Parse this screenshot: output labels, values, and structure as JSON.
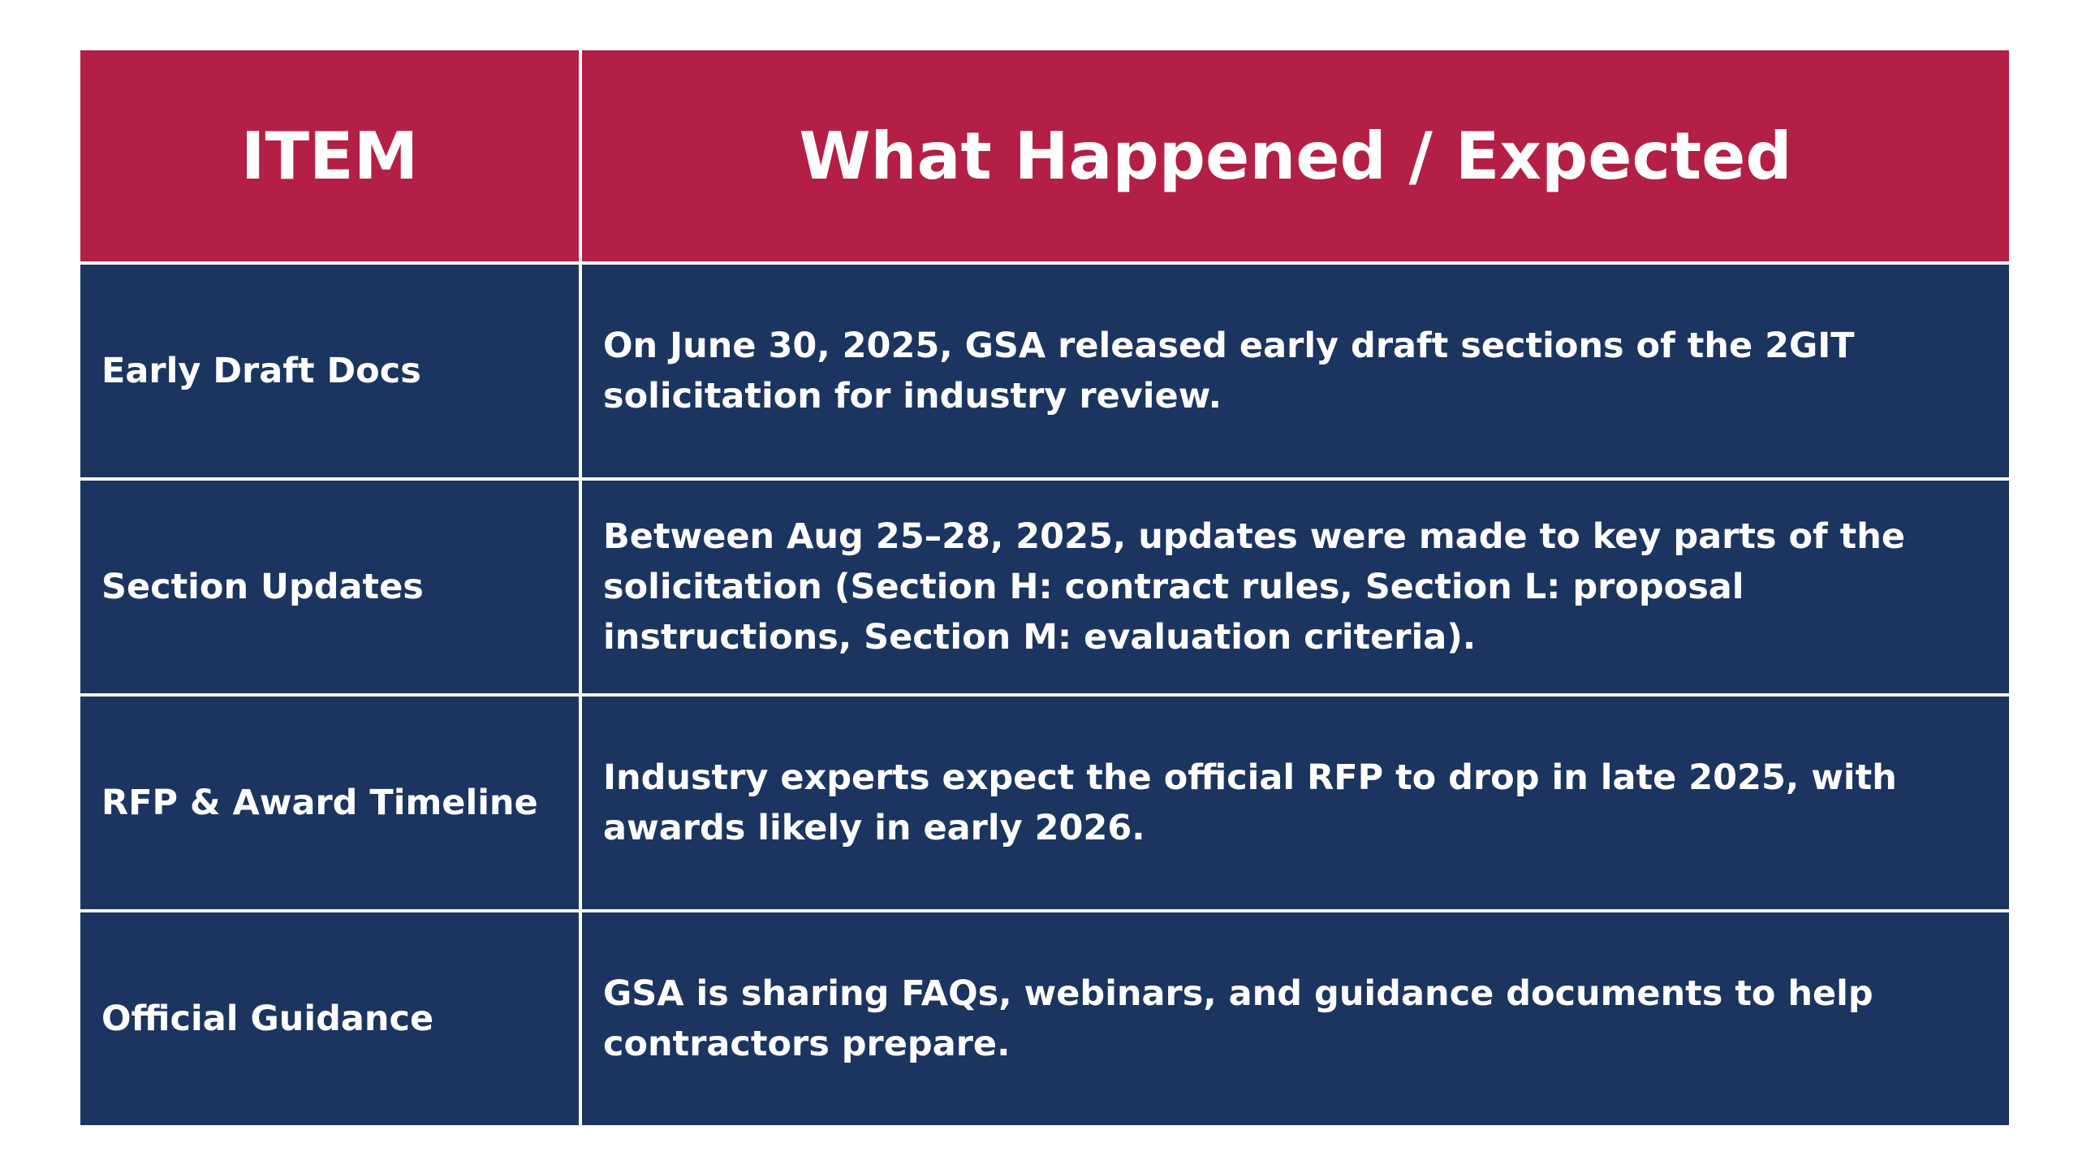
{
  "table": {
    "headers": {
      "item": "ITEM",
      "what": "What Happened / Expected"
    },
    "rows": [
      {
        "item": "Early Draft Docs",
        "description": "On June 30, 2025, GSA released early draft sections of the 2GIT solicitation for industry review."
      },
      {
        "item": "Section Updates",
        "description": "Between Aug 25–28, 2025, updates were made to key parts of the solicitation (Section H: contract rules, Section L: proposal instructions, Section M: evaluation criteria)."
      },
      {
        "item": "RFP & Award Timeline",
        "description": "Industry experts expect the official RFP to drop in late 2025, with awards likely in early 2026."
      },
      {
        "item": "Official Guidance",
        "description": "GSA is sharing FAQs, webinars, and guidance documents to help contractors prepare."
      }
    ]
  },
  "colors": {
    "header_bg": "#b41f45",
    "row_bg": "#1c3460",
    "text": "#ffffff",
    "page_bg": "#ffffff"
  }
}
